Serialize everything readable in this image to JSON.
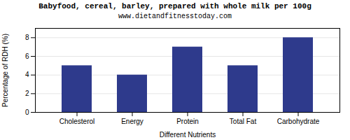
{
  "chart_data": {
    "type": "bar",
    "title": "Babyfood, cereal, barley, prepared with whole milk per 100g",
    "subtitle": "www.dietandfitnesstoday.com",
    "categories": [
      "Cholesterol",
      "Energy",
      "Protein",
      "Total Fat",
      "Carbohydrate"
    ],
    "values": [
      5,
      4,
      7,
      5,
      8
    ],
    "color": "#2e3a8c",
    "xlabel": "Different Nutrients",
    "ylabel": "Percentage of RDH (%)",
    "ylim": [
      0,
      9
    ],
    "yticks": [
      0,
      2,
      4,
      6,
      8
    ],
    "grid": true
  }
}
